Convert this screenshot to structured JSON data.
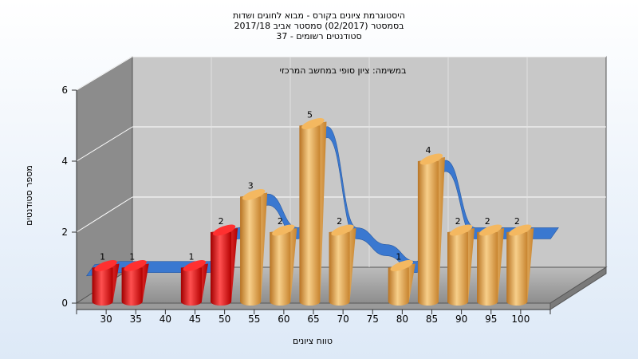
{
  "chart_data": {
    "type": "bar",
    "title": [
      "היסטוגרמת ציונים בקורס - מבוא לחוגים ושדות",
      "בסמסטר  (02/2017)  סמסטר אביב 2017/18",
      "סטודנטים רשומים - 37"
    ],
    "subtitle": "במשימה: ציון סופי במחשב המרכזי",
    "xlabel": "טווח ציונים",
    "ylabel": "מספר סטודנטים",
    "categories": [
      "30",
      "35",
      "40",
      "45",
      "50",
      "55",
      "60",
      "65",
      "70",
      "75",
      "80",
      "85",
      "90",
      "95",
      "100"
    ],
    "values": [
      1,
      1,
      null,
      1,
      2,
      3,
      2,
      5,
      2,
      null,
      1,
      4,
      2,
      2,
      2
    ],
    "bar_colors": [
      "red",
      "red",
      null,
      "red",
      "red",
      "orange",
      "orange",
      "orange",
      "orange",
      null,
      "orange",
      "orange",
      "orange",
      "orange",
      "orange"
    ],
    "ylim": [
      0,
      6
    ],
    "yticks": [
      0,
      2,
      4,
      6
    ],
    "grid": true,
    "curve_color": "#3a78d0",
    "red_color": "#e01010",
    "orange_color": "#e9a548"
  }
}
